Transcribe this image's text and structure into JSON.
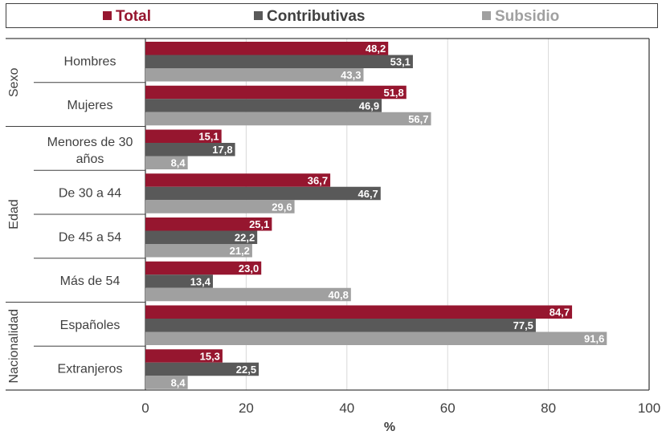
{
  "legend": [
    {
      "name": "Total",
      "color": "#96162F"
    },
    {
      "name": "Contributivas",
      "color": "#595959"
    },
    {
      "name": "Subsidio",
      "color": "#A0A0A0"
    }
  ],
  "chart_data": {
    "type": "bar",
    "orientation": "horizontal",
    "groups": [
      {
        "label": "Sexo",
        "categories": [
          "Hombres",
          "Mujeres"
        ]
      },
      {
        "label": "Edad",
        "categories": [
          "Menores de 30 años",
          "De 30 a 44",
          "De 45 a 54",
          "Más de 54"
        ]
      },
      {
        "label": "Nacionalidad",
        "categories": [
          "Españoles",
          "Extranjeros"
        ]
      }
    ],
    "categories": [
      "Hombres",
      "Mujeres",
      "Menores de 30 años",
      "De 30 a 44",
      "De 45 a 54",
      "Más de 54",
      "Españoles",
      "Extranjeros"
    ],
    "series": [
      {
        "name": "Total",
        "values": [
          48.2,
          51.8,
          15.1,
          36.7,
          25.1,
          23.0,
          84.7,
          15.3
        ],
        "labels": [
          "48,2",
          "51,8",
          "15,1",
          "36,7",
          "25,1",
          "23,0",
          "84,7",
          "15,3"
        ]
      },
      {
        "name": "Contributivas",
        "values": [
          53.1,
          46.9,
          17.8,
          46.7,
          22.2,
          13.4,
          77.5,
          22.5
        ],
        "labels": [
          "53,1",
          "46,9",
          "17,8",
          "46,7",
          "22,2",
          "13,4",
          "77,5",
          "22,5"
        ]
      },
      {
        "name": "Subsidio",
        "values": [
          43.3,
          56.7,
          8.4,
          29.6,
          21.2,
          40.8,
          91.6,
          8.4
        ],
        "labels": [
          "43,3",
          "56,7",
          "8,4",
          "29,6",
          "21,2",
          "40,8",
          "91,6",
          "8,4"
        ]
      }
    ],
    "xlabel": "%",
    "xlim": [
      0,
      100
    ],
    "xticks": [
      0,
      20,
      40,
      60,
      80,
      100
    ],
    "grid": true,
    "legend_position": "top"
  }
}
